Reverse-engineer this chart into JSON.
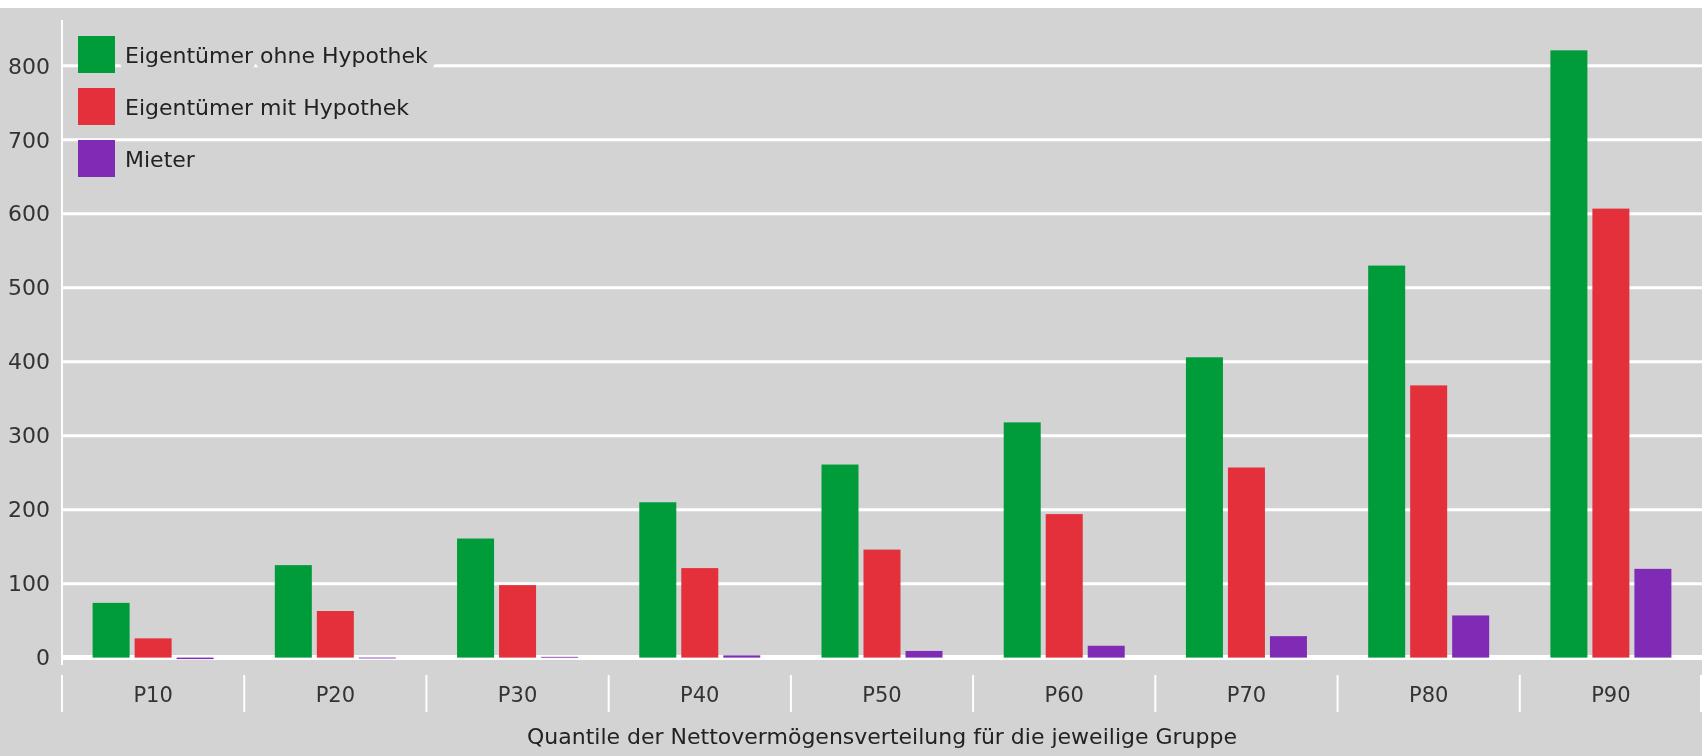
{
  "chart_data": {
    "type": "bar",
    "xlabel": "Quantile der Nettovermögensverteilung für die jeweilige Gruppe",
    "categories": [
      "P10",
      "P20",
      "P30",
      "P40",
      "P50",
      "P60",
      "P70",
      "P80",
      "P90"
    ],
    "series": [
      {
        "name": "Eigentümer ohne Hypothek",
        "color": "#009c3a",
        "values": [
          74,
          125,
          161,
          210,
          261,
          318,
          406,
          530,
          821
        ]
      },
      {
        "name": "Eigentümer mit Hypothek",
        "color": "#e3303a",
        "values": [
          26,
          63,
          98,
          121,
          146,
          194,
          257,
          368,
          607
        ]
      },
      {
        "name": "Mieter",
        "color": "#7f2bb5",
        "values": [
          -2,
          0,
          1,
          3,
          9,
          16,
          29,
          57,
          120
        ]
      }
    ],
    "ylim": [
      -10,
      862
    ],
    "yticks": [
      0,
      100,
      200,
      300,
      400,
      500,
      600,
      700,
      800
    ],
    "grid": "y",
    "legend": "top left"
  }
}
